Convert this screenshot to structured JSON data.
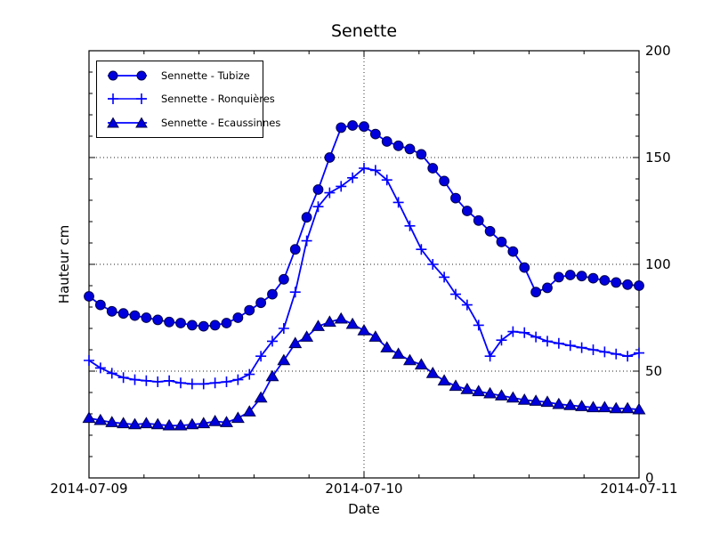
{
  "colors": {
    "line": "#0000ff",
    "marker_fill": "#0000dd",
    "marker_edge": "#00004d",
    "axis": "#000000",
    "grid": "#222222",
    "background": "#ffffff"
  },
  "chart_data": {
    "type": "line",
    "title": "Senette",
    "xlabel": "Date",
    "ylabel": "Hauteur cm",
    "x_tick_labels": [
      "2014-07-09",
      "2014-07-10",
      "2014-07-11"
    ],
    "y_ticks": [
      0,
      50,
      100,
      150,
      200
    ],
    "ylim": [
      0,
      200
    ],
    "xlim_hours": [
      0,
      48
    ],
    "x_unit": "hours since 2014-07-09 00:00",
    "grid": {
      "horizontal_dotted_at": [
        50,
        100,
        150
      ],
      "vertical_dotted_at_hour": 24
    },
    "legend_position": "upper left",
    "x": [
      0,
      1,
      2,
      3,
      4,
      5,
      6,
      7,
      8,
      9,
      10,
      11,
      12,
      13,
      14,
      15,
      16,
      17,
      18,
      19,
      20,
      21,
      22,
      23,
      24,
      25,
      26,
      27,
      28,
      29,
      30,
      31,
      32,
      33,
      34,
      35,
      36,
      37,
      38,
      39,
      40,
      41,
      42,
      43,
      44,
      45,
      46,
      47,
      48
    ],
    "series": [
      {
        "name": "Sennette - Tubize",
        "marker": "circle",
        "values": [
          85,
          81,
          78,
          77,
          76,
          75,
          74,
          73,
          72.5,
          71.5,
          71,
          71.5,
          72.5,
          75,
          78.5,
          82,
          86,
          93,
          107,
          122,
          135,
          150,
          164,
          165,
          164.5,
          161,
          157.5,
          155.5,
          154,
          151.5,
          145,
          139,
          131,
          125,
          120.5,
          115.5,
          110.5,
          106,
          98.5,
          87,
          89,
          94,
          95,
          94.5,
          93.5,
          92.5,
          91.5,
          90.5,
          90
        ]
      },
      {
        "name": "Sennette - Ronquières",
        "marker": "plus",
        "values": [
          55,
          51.5,
          49,
          47,
          46,
          45.5,
          45,
          45.5,
          44.5,
          44,
          44,
          44.5,
          45,
          46,
          48.5,
          57,
          64,
          70,
          87,
          111,
          127,
          133.5,
          136.5,
          140.5,
          145,
          144,
          139.5,
          129,
          118,
          107,
          100,
          94,
          86,
          81,
          71.5,
          57,
          64.5,
          68.5,
          68,
          66,
          64,
          63,
          62,
          61,
          60,
          59,
          58,
          57,
          58.5
        ]
      },
      {
        "name": "Sennette - Ecaussinnes",
        "marker": "triangle",
        "values": [
          28,
          27,
          26,
          25.5,
          25,
          25.5,
          25,
          24.5,
          24.5,
          25,
          25.5,
          26.5,
          26,
          28,
          31,
          37.5,
          47.5,
          55,
          63,
          66,
          71,
          73,
          74.5,
          72,
          69,
          66,
          61,
          58,
          55,
          53,
          49,
          45.5,
          43,
          41.5,
          40.5,
          39.5,
          38.5,
          37.5,
          36.5,
          36,
          35.5,
          34.5,
          34,
          33.5,
          33,
          33,
          32.5,
          32.5,
          32
        ]
      }
    ]
  }
}
